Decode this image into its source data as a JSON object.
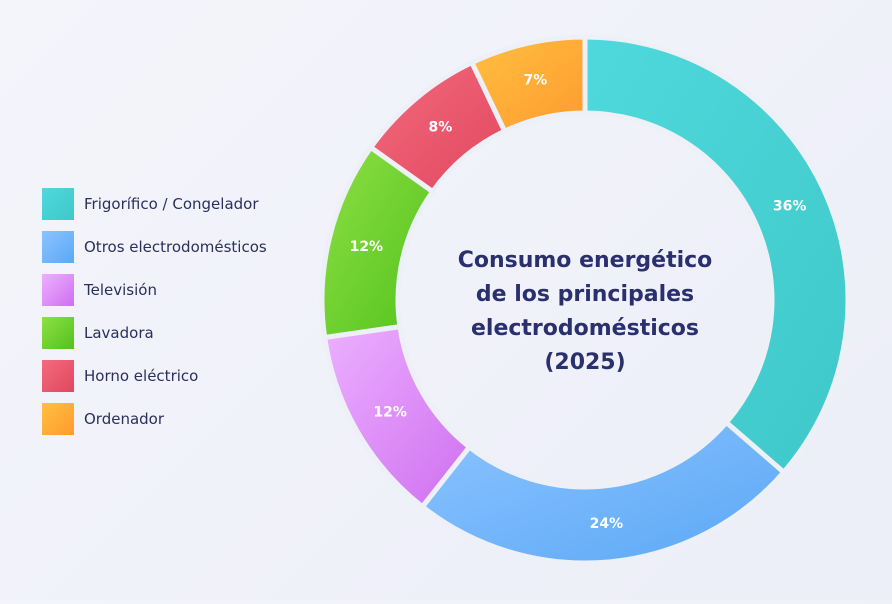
{
  "chart_data": {
    "type": "pie",
    "title_lines": [
      "Consumo energético",
      "de los principales",
      "electrodomésticos",
      "(2025)"
    ],
    "series": [
      {
        "name": "Frigorífico / Congelador",
        "value": 36,
        "label": "36%",
        "colors": [
          "#4fd9dc",
          "#3ec8c9"
        ]
      },
      {
        "name": "Otros electrodomésticos",
        "value": 24,
        "label": "24%",
        "colors": [
          "#8cc3ff",
          "#5aa8f6"
        ]
      },
      {
        "name": "Televisión",
        "value": 12,
        "label": "12%",
        "colors": [
          "#ecb0ff",
          "#cf6ff0"
        ]
      },
      {
        "name": "Lavadora",
        "value": 12,
        "label": "12%",
        "colors": [
          "#8ee045",
          "#52c21c"
        ]
      },
      {
        "name": "Horno eléctrico",
        "value": 8,
        "label": "8%",
        "colors": [
          "#f46a7e",
          "#e0485f"
        ]
      },
      {
        "name": "Ordenador",
        "value": 7,
        "label": "7%",
        "colors": [
          "#ffc040",
          "#ff9a30"
        ]
      }
    ],
    "legend_position": "left",
    "start": "top",
    "direction": "clockwise"
  }
}
